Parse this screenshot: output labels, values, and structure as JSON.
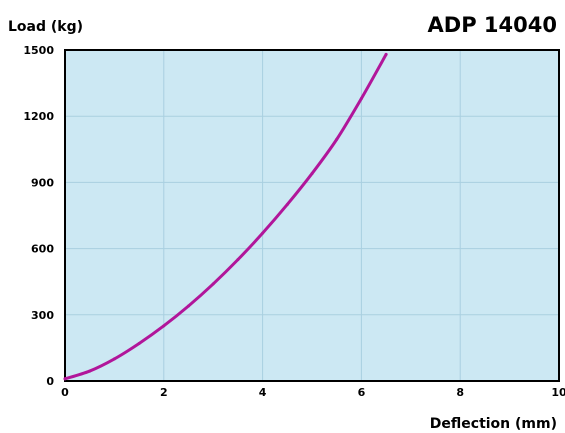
{
  "chart_data": {
    "type": "line",
    "title": "ADP 14040",
    "xlabel": "Deflection (mm)",
    "ylabel": "Load (kg)",
    "xlim": [
      0,
      10
    ],
    "ylim": [
      0,
      1500
    ],
    "x_ticks": [
      0,
      2,
      4,
      6,
      8,
      10
    ],
    "y_ticks": [
      0,
      300,
      600,
      900,
      1200,
      1500
    ],
    "grid": true,
    "colors": {
      "plot_background": "#cce8f3",
      "grid": "#a9cfe0",
      "line": "#b1169a"
    },
    "series": [
      {
        "x": [
          0,
          0.5,
          1,
          1.5,
          2,
          2.5,
          3,
          3.5,
          4,
          4.5,
          5,
          5.5,
          6,
          6.5
        ],
        "values": [
          10,
          45,
          100,
          170,
          250,
          340,
          440,
          550,
          670,
          800,
          940,
          1095,
          1280,
          1480
        ]
      }
    ]
  }
}
